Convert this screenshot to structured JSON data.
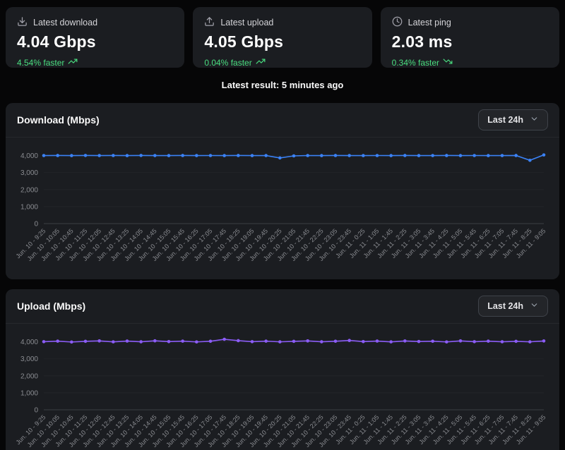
{
  "cards": [
    {
      "icon": "download-icon",
      "label": "Latest download",
      "value": "4.04 Gbps",
      "delta": "4.54% faster",
      "trend": "up"
    },
    {
      "icon": "upload-icon",
      "label": "Latest upload",
      "value": "4.05 Gbps",
      "delta": "0.04% faster",
      "trend": "up"
    },
    {
      "icon": "clock-icon",
      "label": "Latest ping",
      "value": "2.03 ms",
      "delta": "0.34% faster",
      "trend": "down"
    }
  ],
  "latest_result": "Latest result: 5 minutes ago",
  "colors": {
    "background": "#060607",
    "panel": "#1b1d21",
    "accent_green": "#4ade80",
    "download_line": "#3b82f6",
    "upload_line": "#8b5cf6",
    "grid": "#232529",
    "axis_text": "#8b8d92"
  },
  "chart_data": [
    {
      "type": "line",
      "title": "Download (Mbps)",
      "range_label": "Last 24h",
      "color": "#3b82f6",
      "ylim": [
        0,
        4400
      ],
      "yticks": [
        0,
        1000,
        2000,
        3000,
        4000
      ],
      "grid": true,
      "legend": "none",
      "categories": [
        "Jun. 10 - 9:25",
        "Jun. 10 - 10:05",
        "Jun. 10 - 10:45",
        "Jun. 10 - 11:25",
        "Jun. 10 - 12:05",
        "Jun. 10 - 12:45",
        "Jun. 10 - 13:25",
        "Jun. 10 - 14:05",
        "Jun. 10 - 14:45",
        "Jun. 10 - 15:05",
        "Jun. 10 - 15:45",
        "Jun. 10 - 16:25",
        "Jun. 10 - 17:05",
        "Jun. 10 - 17:45",
        "Jun. 10 - 18:25",
        "Jun. 10 - 19:05",
        "Jun. 10 - 19:45",
        "Jun. 10 - 20:25",
        "Jun. 10 - 21:05",
        "Jun. 10 - 21:45",
        "Jun. 10 - 22:25",
        "Jun. 10 - 23:05",
        "Jun. 10 - 23:45",
        "Jun. 11 - 0:25",
        "Jun. 11 - 1:05",
        "Jun. 11 - 1:45",
        "Jun. 11 - 2:25",
        "Jun. 11 - 3:05",
        "Jun. 11 - 3:45",
        "Jun. 11 - 4:25",
        "Jun. 11 - 5:05",
        "Jun. 11 - 5:45",
        "Jun. 11 - 6:25",
        "Jun. 11 - 7:05",
        "Jun. 11 - 7:45",
        "Jun. 11 - 8:25",
        "Jun. 11 - 9:05"
      ],
      "values": [
        4005,
        4008,
        4002,
        4010,
        4004,
        4007,
        4003,
        4009,
        4005,
        4002,
        4008,
        4004,
        4006,
        4001,
        4007,
        4003,
        4005,
        3865,
        3985,
        4006,
        4002,
        4008,
        4004,
        4001,
        4006,
        4003,
        4007,
        4002,
        4005,
        4008,
        4003,
        4006,
        4001,
        4004,
        4007,
        3725,
        4040
      ]
    },
    {
      "type": "line",
      "title": "Upload (Mbps)",
      "range_label": "Last 24h",
      "color": "#8b5cf6",
      "ylim": [
        0,
        4400
      ],
      "yticks": [
        0,
        1000,
        2000,
        3000,
        4000
      ],
      "grid": true,
      "legend": "none",
      "categories": [
        "Jun. 10 - 9:25",
        "Jun. 10 - 10:05",
        "Jun. 10 - 10:45",
        "Jun. 10 - 11:25",
        "Jun. 10 - 12:05",
        "Jun. 10 - 12:45",
        "Jun. 10 - 13:25",
        "Jun. 10 - 14:05",
        "Jun. 10 - 14:45",
        "Jun. 10 - 15:05",
        "Jun. 10 - 15:45",
        "Jun. 10 - 16:25",
        "Jun. 10 - 17:05",
        "Jun. 10 - 17:45",
        "Jun. 10 - 18:25",
        "Jun. 10 - 19:05",
        "Jun. 10 - 19:45",
        "Jun. 10 - 20:25",
        "Jun. 10 - 21:05",
        "Jun. 10 - 21:45",
        "Jun. 10 - 22:25",
        "Jun. 10 - 23:05",
        "Jun. 10 - 23:45",
        "Jun. 11 - 0:25",
        "Jun. 11 - 1:05",
        "Jun. 11 - 1:45",
        "Jun. 11 - 2:25",
        "Jun. 11 - 3:05",
        "Jun. 11 - 3:45",
        "Jun. 11 - 4:25",
        "Jun. 11 - 5:05",
        "Jun. 11 - 5:45",
        "Jun. 11 - 6:25",
        "Jun. 11 - 7:05",
        "Jun. 11 - 7:45",
        "Jun. 11 - 8:25",
        "Jun. 11 - 9:05"
      ],
      "values": [
        4010,
        4040,
        3990,
        4030,
        4055,
        4000,
        4045,
        4005,
        4060,
        4015,
        4040,
        3995,
        4035,
        4150,
        4070,
        4010,
        4040,
        4000,
        4030,
        4055,
        4005,
        4035,
        4080,
        4015,
        4045,
        4000,
        4050,
        4020,
        4035,
        3995,
        4055,
        4010,
        4040,
        4005,
        4030,
        4000,
        4050
      ]
    }
  ]
}
